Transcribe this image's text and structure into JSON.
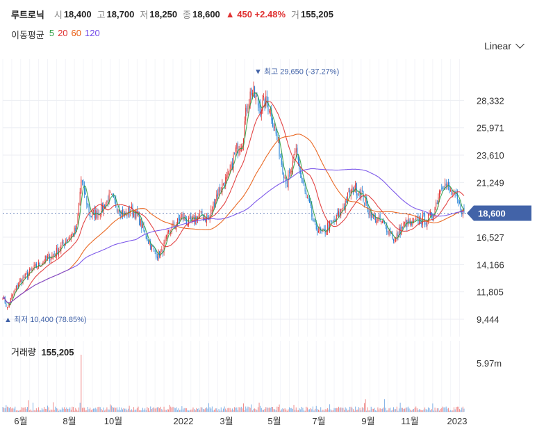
{
  "header": {
    "name": "루트로닉",
    "open_label": "시",
    "open": "18,400",
    "high_label": "고",
    "high": "18,700",
    "low_label": "저",
    "low": "18,250",
    "close_label": "종",
    "close": "18,600",
    "change": "▲ 450 +2.48%",
    "volume_label": "거",
    "volume": "155,205"
  },
  "ma_legend": {
    "title": "이동평균",
    "items": [
      {
        "label": "5",
        "color": "#2f9e44"
      },
      {
        "label": "20",
        "color": "#e03131"
      },
      {
        "label": "60",
        "color": "#e8590c"
      },
      {
        "label": "120",
        "color": "#7048e8"
      }
    ]
  },
  "scale_button": {
    "label": "Linear"
  },
  "chart_data": {
    "type": "line",
    "subtype": "candlestick-with-moving-averages",
    "period": "2021-05 ~ 2023-01",
    "y_ticks": [
      9444,
      11805,
      14166,
      16527,
      18888,
      21249,
      23610,
      25971,
      28332
    ],
    "y_tick_labels": [
      "9,444",
      "11,805",
      "14,166",
      "16,527",
      "",
      "21,249",
      "23,610",
      "25,971",
      "28,332"
    ],
    "ylim": [
      8300,
      31300
    ],
    "x_ticks": [
      "6월",
      "8월",
      "10월",
      "2022",
      "3월",
      "5월",
      "7월",
      "9월",
      "11월",
      "2023"
    ],
    "current_price": {
      "value": 18600,
      "label": "18,600"
    },
    "max_marker": {
      "value": 29650,
      "label": "▼ 최고",
      "text": "29,650 (-37.27%)"
    },
    "min_marker": {
      "value": 10400,
      "label": "▲ 최저",
      "text": "10,400 (78.85%)"
    },
    "price_series": [
      {
        "t": 0,
        "v": 11500
      },
      {
        "t": 4,
        "v": 10400
      },
      {
        "t": 8,
        "v": 11400
      },
      {
        "t": 14,
        "v": 12500
      },
      {
        "t": 20,
        "v": 13100
      },
      {
        "t": 26,
        "v": 13700
      },
      {
        "t": 32,
        "v": 14100
      },
      {
        "t": 38,
        "v": 14600
      },
      {
        "t": 44,
        "v": 14900
      },
      {
        "t": 50,
        "v": 15500
      },
      {
        "t": 56,
        "v": 16200
      },
      {
        "t": 62,
        "v": 16800
      },
      {
        "t": 66,
        "v": 17200
      },
      {
        "t": 70,
        "v": 21500
      },
      {
        "t": 74,
        "v": 20000
      },
      {
        "t": 78,
        "v": 18400
      },
      {
        "t": 84,
        "v": 18600
      },
      {
        "t": 90,
        "v": 19200
      },
      {
        "t": 96,
        "v": 20000
      },
      {
        "t": 102,
        "v": 19200
      },
      {
        "t": 108,
        "v": 18400
      },
      {
        "t": 114,
        "v": 18900
      },
      {
        "t": 120,
        "v": 18500
      },
      {
        "t": 126,
        "v": 17000
      },
      {
        "t": 132,
        "v": 15800
      },
      {
        "t": 138,
        "v": 15000
      },
      {
        "t": 142,
        "v": 15200
      },
      {
        "t": 148,
        "v": 16900
      },
      {
        "t": 154,
        "v": 17600
      },
      {
        "t": 160,
        "v": 18300
      },
      {
        "t": 166,
        "v": 17700
      },
      {
        "t": 172,
        "v": 18200
      },
      {
        "t": 178,
        "v": 18400
      },
      {
        "t": 184,
        "v": 18000
      },
      {
        "t": 190,
        "v": 20000
      },
      {
        "t": 196,
        "v": 21000
      },
      {
        "t": 202,
        "v": 21800
      },
      {
        "t": 208,
        "v": 24000
      },
      {
        "t": 214,
        "v": 25000
      },
      {
        "t": 218,
        "v": 27800
      },
      {
        "t": 222,
        "v": 29200
      },
      {
        "t": 226,
        "v": 28500
      },
      {
        "t": 230,
        "v": 27600
      },
      {
        "t": 234,
        "v": 28200
      },
      {
        "t": 238,
        "v": 27800
      },
      {
        "t": 242,
        "v": 26300
      },
      {
        "t": 246,
        "v": 24500
      },
      {
        "t": 250,
        "v": 22500
      },
      {
        "t": 254,
        "v": 21200
      },
      {
        "t": 258,
        "v": 22300
      },
      {
        "t": 262,
        "v": 24000
      },
      {
        "t": 266,
        "v": 22000
      },
      {
        "t": 270,
        "v": 20300
      },
      {
        "t": 274,
        "v": 19200
      },
      {
        "t": 278,
        "v": 17500
      },
      {
        "t": 282,
        "v": 17200
      },
      {
        "t": 286,
        "v": 16700
      },
      {
        "t": 290,
        "v": 17500
      },
      {
        "t": 296,
        "v": 17800
      },
      {
        "t": 302,
        "v": 18800
      },
      {
        "t": 308,
        "v": 20000
      },
      {
        "t": 314,
        "v": 20800
      },
      {
        "t": 318,
        "v": 20500
      },
      {
        "t": 322,
        "v": 20000
      },
      {
        "t": 326,
        "v": 19000
      },
      {
        "t": 330,
        "v": 18300
      },
      {
        "t": 336,
        "v": 18000
      },
      {
        "t": 342,
        "v": 17400
      },
      {
        "t": 346,
        "v": 17000
      },
      {
        "t": 350,
        "v": 16200
      },
      {
        "t": 354,
        "v": 17000
      },
      {
        "t": 360,
        "v": 17800
      },
      {
        "t": 366,
        "v": 17600
      },
      {
        "t": 372,
        "v": 18000
      },
      {
        "t": 378,
        "v": 18000
      },
      {
        "t": 384,
        "v": 18500
      },
      {
        "t": 388,
        "v": 19800
      },
      {
        "t": 392,
        "v": 21200
      },
      {
        "t": 396,
        "v": 21000
      },
      {
        "t": 400,
        "v": 20400
      },
      {
        "t": 404,
        "v": 20000
      },
      {
        "t": 408,
        "v": 19200
      },
      {
        "t": 412,
        "v": 18600
      }
    ],
    "volume_label": "거래량",
    "volume_value": "155,205",
    "volume_axis_label": "5.97m",
    "volume_peak": 5.97
  }
}
